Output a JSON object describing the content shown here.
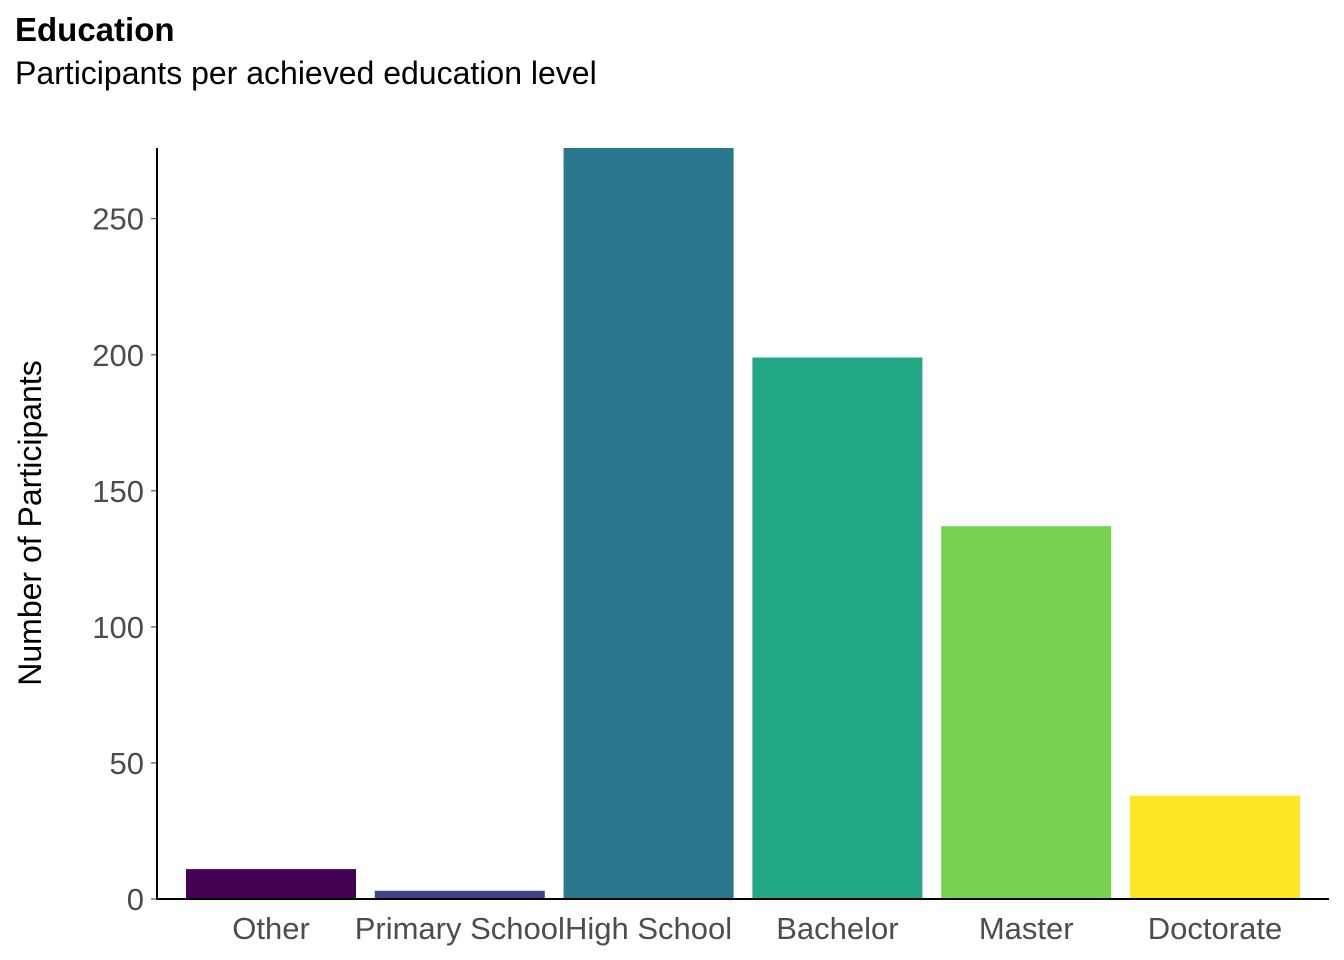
{
  "chart_data": {
    "type": "bar",
    "title": "Education",
    "subtitle": "Participants per achieved education level",
    "xlabel": "",
    "ylabel": "Number of Participants",
    "categories": [
      "Other",
      "Primary School",
      "High School",
      "Bachelor",
      "Master",
      "Doctorate"
    ],
    "values": [
      11,
      3,
      276,
      199,
      137,
      38
    ],
    "colors": [
      "#440154",
      "#414487",
      "#2a788e",
      "#22a884",
      "#7ad151",
      "#fde725"
    ],
    "ylim": [
      0,
      276
    ],
    "yticks": [
      0,
      50,
      100,
      150,
      200,
      250
    ],
    "grid": false,
    "legend": "none"
  }
}
